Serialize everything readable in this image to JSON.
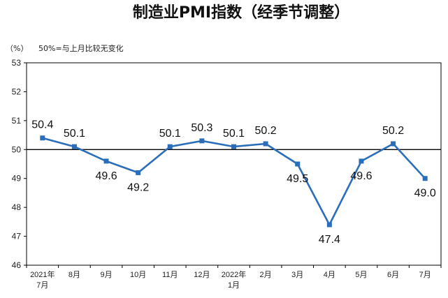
{
  "chart_data": {
    "type": "line",
    "title": "制造业PMI指数（经季节调整）",
    "unit_label": "（%）",
    "note": "50%=与上月比较无变化",
    "ylim": [
      46,
      53
    ],
    "yticks": [
      "46",
      "47",
      "48",
      "49",
      "50",
      "51",
      "52",
      "53"
    ],
    "categories": [
      [
        "2021年",
        "7月"
      ],
      [
        "8月"
      ],
      [
        "9月"
      ],
      [
        "10月"
      ],
      [
        "11月"
      ],
      [
        "12月"
      ],
      [
        "2022年",
        "1月"
      ],
      [
        "2月"
      ],
      [
        "3月"
      ],
      [
        "4月"
      ],
      [
        "5月"
      ],
      [
        "6月"
      ],
      [
        "7月"
      ]
    ],
    "series": [
      {
        "values": [
          50.4,
          50.1,
          49.6,
          49.2,
          50.1,
          50.3,
          50.1,
          50.2,
          49.5,
          47.4,
          49.6,
          50.2,
          49.0
        ],
        "labels": [
          "50.4",
          "50.1",
          "49.6",
          "49.2",
          "50.1",
          "50.3",
          "50.1",
          "50.2",
          "49.5",
          "47.4",
          "49.6",
          "50.2",
          "49.0"
        ]
      }
    ],
    "reference_line": 50,
    "colors": {
      "series": "#2a6ebb",
      "reference": "#000000",
      "axis": "#000000"
    },
    "grid": false,
    "legend": "none"
  }
}
